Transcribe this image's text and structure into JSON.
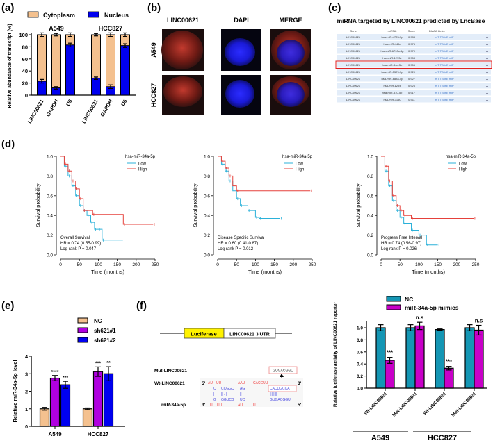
{
  "panel_labels": {
    "a": "(a)",
    "b": "(b)",
    "c": "(c)",
    "d": "(d)",
    "e": "(e)",
    "f": "(f)"
  },
  "colors": {
    "cytoplasm": "#F4C18F",
    "nucleus": "#0000F0",
    "nc_e": "#F4C18F",
    "sh1": "#B000E0",
    "sh2": "#0000F0",
    "nc_f": "#1496B4",
    "mimics": "#C800C8",
    "km_low": "#2BB1D9",
    "km_high": "#E5413B"
  },
  "panel_b": {
    "columns": [
      "LINC00621",
      "DAPI",
      "MERGE"
    ],
    "rows": [
      "A549",
      "HCC827"
    ]
  },
  "panel_c": {
    "title": "miRNA targeted by LINC00621 predicted by LncBase",
    "headers": [
      "Gene",
      "miRNA",
      "Score",
      "DIANA Links"
    ],
    "rows": [
      {
        "gene": "LINC00621",
        "mirna": "hsa-miR-4725-3p",
        "score": "0.983",
        "links": "miT TB inE miP"
      },
      {
        "gene": "LINC00621",
        "mirna": "hsa-miR-449a",
        "score": "0.975",
        "links": "miT TB inE miP"
      },
      {
        "gene": "LINC00621",
        "mirna": "hsa-miR-6790s-5p",
        "score": "0.970",
        "links": "miT TB inE miP"
      },
      {
        "gene": "LINC00621",
        "mirna": "hsa-miR-1273e",
        "score": "0.958",
        "links": "miT TB inE miP"
      },
      {
        "gene": "LINC00621",
        "mirna": "hsa-miR-34a-5p",
        "score": "0.956",
        "links": "miT TB inE miP"
      },
      {
        "gene": "LINC00621",
        "mirna": "hsa-miR-5579-3p",
        "score": "0.929",
        "links": "miT TB inE miP"
      },
      {
        "gene": "LINC00621",
        "mirna": "hsa-miR-6884-5p",
        "score": "0.927",
        "links": "miT TB inE miP"
      },
      {
        "gene": "LINC00621",
        "mirna": "hsa-miR-1294",
        "score": "0.926",
        "links": "miT TB inE miP"
      },
      {
        "gene": "LINC00621",
        "mirna": "hsa-miR-510-5p",
        "score": "0.917",
        "links": "miT TB inE miP"
      },
      {
        "gene": "LINC00621",
        "mirna": "hsa-miR-3150",
        "score": "0.911",
        "links": "miT TB inE miP"
      }
    ],
    "highlighted_row": 4
  },
  "panel_f_construct": {
    "luciferase": "Luciferase",
    "utr": "LINC00621 3'UTR",
    "mut_label": "Mut-LINC00621",
    "mut_seq": "GUGACGGU",
    "wt_label": "Wt-LINC00621",
    "mir_label": "miR-34a-5p",
    "five": "5'",
    "three": "3'",
    "wt_top": [
      "AU",
      "UU",
      "AAU",
      "CACCUU"
    ],
    "wt_mid": [
      "C",
      "CCGGC",
      "AG",
      "CACUGCCA"
    ],
    "pairs": [
      "|",
      "|| . ||",
      "||",
      "||||||||"
    ],
    "mir_mid": [
      "G",
      "GGUCG",
      "UC",
      "GUGACGGU"
    ],
    "mir_bot": [
      "U",
      "UU",
      "AU",
      "U"
    ]
  },
  "chart_data": [
    {
      "id": "a",
      "type": "bar",
      "stacked": true,
      "ylabel": "Relative abundance of transcript (%)",
      "ylim": [
        0,
        100
      ],
      "yticks": [
        0,
        20,
        40,
        60,
        80,
        100
      ],
      "legend": [
        "Cytoplasm",
        "Nucleus"
      ],
      "groups": [
        {
          "name": "A549",
          "categories": [
            "LINC00621",
            "GAPDH",
            "U6"
          ],
          "nucleus": [
            23,
            12,
            83
          ],
          "cytoplasm": [
            77,
            88,
            17
          ],
          "nucleus_err": [
            3,
            2,
            3
          ],
          "total_err": [
            3,
            2,
            3
          ]
        },
        {
          "name": "HCC827",
          "categories": [
            "LINC00621",
            "GAPDH",
            "U6"
          ],
          "nucleus": [
            28,
            14,
            82
          ],
          "cytoplasm": [
            72,
            86,
            18
          ],
          "nucleus_err": [
            2,
            3,
            3
          ],
          "total_err": [
            2,
            3,
            3
          ]
        }
      ]
    },
    {
      "id": "d1",
      "type": "line",
      "title": "Overall Survival",
      "legend_title": "hsa-miR-34a-5p",
      "legend": [
        "Low",
        "High"
      ],
      "xlabel": "Time (months)",
      "ylabel": "Survival probability",
      "xlim": [
        0,
        250
      ],
      "ylim": [
        0,
        1
      ],
      "xticks": [
        0,
        50,
        100,
        150,
        200,
        250
      ],
      "yticks": [
        "0.0",
        "0.2",
        "0.4",
        "0.6",
        "0.8",
        "1.0"
      ],
      "stats": [
        "Overall Survival",
        "HR = 0.74 (0.55-0.99)",
        "Log-rank P = 0.047"
      ],
      "series": [
        {
          "name": "Low",
          "points": [
            [
              0,
              1
            ],
            [
              10,
              0.9
            ],
            [
              20,
              0.8
            ],
            [
              30,
              0.7
            ],
            [
              40,
              0.6
            ],
            [
              50,
              0.5
            ],
            [
              60,
              0.45
            ],
            [
              70,
              0.4
            ],
            [
              80,
              0.33
            ],
            [
              90,
              0.26
            ],
            [
              100,
              0.26
            ],
            [
              110,
              0.15
            ],
            [
              165,
              0.15
            ]
          ]
        },
        {
          "name": "High",
          "points": [
            [
              0,
              1
            ],
            [
              10,
              0.92
            ],
            [
              20,
              0.85
            ],
            [
              30,
              0.75
            ],
            [
              40,
              0.67
            ],
            [
              50,
              0.57
            ],
            [
              60,
              0.45
            ],
            [
              85,
              0.41
            ],
            [
              165,
              0.41
            ],
            [
              166,
              0.31
            ],
            [
              245,
              0.31
            ]
          ]
        }
      ]
    },
    {
      "id": "d2",
      "type": "line",
      "title": "Disease Specific Survival",
      "legend_title": "hsa-miR-34a-5p",
      "legend": [
        "Low",
        "High"
      ],
      "xlabel": "Time (months)",
      "ylabel": "Survival probability",
      "xlim": [
        0,
        250
      ],
      "ylim": [
        0,
        1
      ],
      "xticks": [
        0,
        50,
        100,
        150,
        200,
        250
      ],
      "yticks": [
        "0.0",
        "0.2",
        "0.4",
        "0.6",
        "0.8",
        "1.0"
      ],
      "stats": [
        "Disease Specific Survival",
        "HR = 0.60 (0.41-0.87)",
        "Log-rank P = 0.012"
      ],
      "series": [
        {
          "name": "Low",
          "points": [
            [
              0,
              1
            ],
            [
              10,
              0.92
            ],
            [
              20,
              0.85
            ],
            [
              30,
              0.75
            ],
            [
              40,
              0.65
            ],
            [
              50,
              0.57
            ],
            [
              60,
              0.5
            ],
            [
              80,
              0.45
            ],
            [
              100,
              0.38
            ],
            [
              110,
              0.37
            ],
            [
              165,
              0.37
            ]
          ]
        },
        {
          "name": "High",
          "points": [
            [
              0,
              1
            ],
            [
              10,
              0.95
            ],
            [
              20,
              0.88
            ],
            [
              30,
              0.8
            ],
            [
              40,
              0.7
            ],
            [
              50,
              0.65
            ],
            [
              245,
              0.65
            ]
          ]
        }
      ]
    },
    {
      "id": "d3",
      "type": "line",
      "title": "Progress Free Interval",
      "legend_title": "hsa-miR-34a-5p",
      "legend": [
        "Low",
        "High"
      ],
      "xlabel": "Time (months)",
      "ylabel": "Survival probability",
      "xlim": [
        0,
        250
      ],
      "ylim": [
        0,
        1
      ],
      "xticks": [
        0,
        50,
        100,
        150,
        200,
        250
      ],
      "yticks": [
        "0.0",
        "0.2",
        "0.4",
        "0.6",
        "0.8",
        "1.0"
      ],
      "stats": [
        "Progress Free Interval",
        "HR = 0.74 (0.56-0.97)",
        "Log-rank P = 0.026"
      ],
      "series": [
        {
          "name": "Low",
          "points": [
            [
              0,
              1
            ],
            [
              10,
              0.85
            ],
            [
              20,
              0.7
            ],
            [
              30,
              0.55
            ],
            [
              40,
              0.45
            ],
            [
              50,
              0.38
            ],
            [
              60,
              0.32
            ],
            [
              80,
              0.25
            ],
            [
              100,
              0.2
            ],
            [
              120,
              0.1
            ],
            [
              150,
              0.1
            ]
          ]
        },
        {
          "name": "High",
          "points": [
            [
              0,
              1
            ],
            [
              10,
              0.9
            ],
            [
              20,
              0.75
            ],
            [
              30,
              0.6
            ],
            [
              40,
              0.5
            ],
            [
              50,
              0.45
            ],
            [
              60,
              0.4
            ],
            [
              80,
              0.37
            ],
            [
              245,
              0.37
            ]
          ]
        }
      ]
    },
    {
      "id": "e",
      "type": "bar",
      "ylabel": "Relative miR-34a-5p level",
      "ylim": [
        0,
        4
      ],
      "yticks": [
        0,
        1,
        2,
        3,
        4
      ],
      "legend": [
        "NC",
        "sh621#1",
        "sh621#2"
      ],
      "categories": [
        "A549",
        "HCC827"
      ],
      "series": [
        {
          "name": "NC",
          "values": [
            1.0,
            1.0
          ],
          "err": [
            0.08,
            0.05
          ],
          "sig": [
            "",
            ""
          ]
        },
        {
          "name": "sh621#1",
          "values": [
            2.75,
            3.12
          ],
          "err": [
            0.15,
            0.27
          ],
          "sig": [
            "****",
            "***"
          ]
        },
        {
          "name": "sh621#2",
          "values": [
            2.37,
            3.0
          ],
          "err": [
            0.2,
            0.4
          ],
          "sig": [
            "***",
            "**"
          ]
        }
      ]
    },
    {
      "id": "f",
      "type": "bar",
      "ylabel": "Relative luciferase activity of LINC00621 reporter",
      "ylim": [
        0,
        1.0
      ],
      "yticks": [
        "0.0",
        "0.2",
        "0.4",
        "0.6",
        "0.8",
        "1.0"
      ],
      "legend": [
        "NC",
        "miR-34a-5p mimics"
      ],
      "categories": [
        "Wt-LINC00621",
        "Mut-LINC00621",
        "Wt-LINC00621",
        "Mut-LINC00621"
      ],
      "cell_lines": [
        "A549",
        "HCC827"
      ],
      "series": [
        {
          "name": "NC",
          "values": [
            1.0,
            1.0,
            0.97,
            1.0
          ],
          "err": [
            0.05,
            0.05,
            0.01,
            0.05
          ]
        },
        {
          "name": "miR-34a-5p mimics",
          "values": [
            0.46,
            1.03,
            0.33,
            0.96
          ],
          "err": [
            0.05,
            0.06,
            0.03,
            0.08
          ]
        }
      ],
      "significance": [
        "***",
        "n.s",
        "***",
        "n.s"
      ]
    }
  ]
}
